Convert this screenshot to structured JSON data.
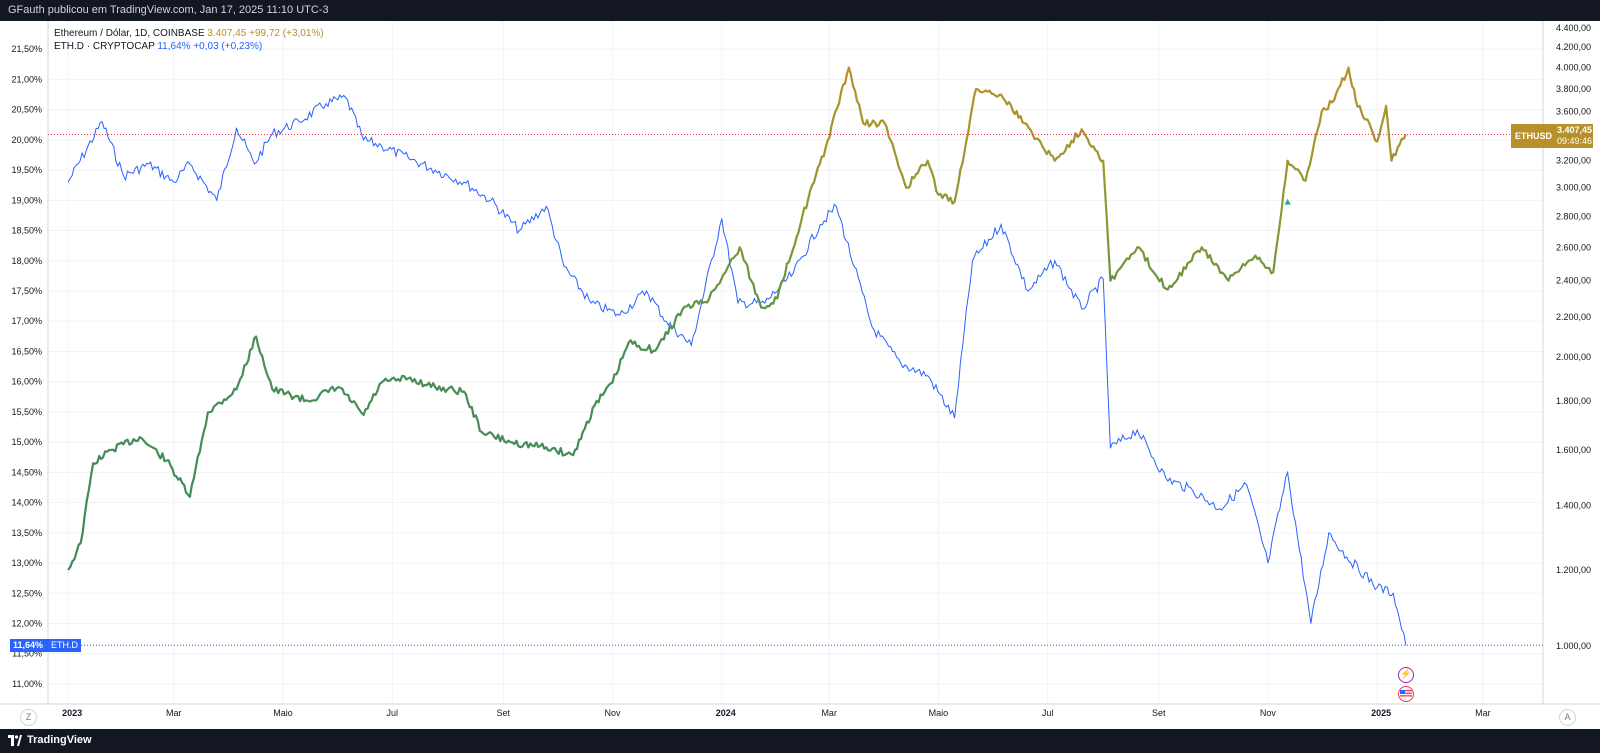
{
  "header": {
    "publisher_text": "GFauth publicou em TradingView.com, Jan 17, 2025 11:10 UTC-3"
  },
  "footer": {
    "brand": "TradingView"
  },
  "legend": {
    "series1": {
      "name": "Ethereum / Dólar, 1D, COINBASE",
      "value": "3.407,45",
      "change": "+99,72 (+3,01%)"
    },
    "series2": {
      "name": "ETH.D · CRYPTOCAP",
      "value": "11,64%",
      "change": "+0,03 (+0,23%)"
    }
  },
  "price_label": {
    "symbol": "ETHUSD",
    "price": "3.407,45",
    "countdown": "09:49:46"
  },
  "dominance_label": {
    "value": "11,64%",
    "symbol": "ETH.D"
  },
  "buttons": {
    "z": "Z",
    "a": "A"
  },
  "colors": {
    "ethd_line": "#2962ff",
    "eth_up": "#b8902a",
    "eth_low": "#3a8a5a",
    "price_line": "#f23645",
    "grid": "#f0f3fa"
  },
  "chart_data": {
    "type": "line",
    "x_axis": {
      "labels": [
        "2023",
        "Mar",
        "Maio",
        "Jul",
        "Set",
        "Nov",
        "2024",
        "Mar",
        "Maio",
        "Jul",
        "Set",
        "Nov",
        "2025",
        "Mar"
      ],
      "range": [
        "2023-01",
        "2025-03"
      ]
    },
    "left_axis": {
      "ticks": [
        "21,50%",
        "21,00%",
        "20,50%",
        "20,00%",
        "19,50%",
        "19,00%",
        "18,50%",
        "18,00%",
        "17,50%",
        "17,00%",
        "16,50%",
        "16,00%",
        "15,50%",
        "15,00%",
        "14,50%",
        "14,00%",
        "13,50%",
        "13,00%",
        "12,50%",
        "12,00%",
        "11,50%",
        "11,00%"
      ],
      "range": [
        10.9,
        21.9
      ]
    },
    "right_axis": {
      "ticks": [
        "4.400,00",
        "4.200,00",
        "4.000,00",
        "3.800,00",
        "3.600,00",
        "3.400,00",
        "3.200,00",
        "3.000,00",
        "2.800,00",
        "2.600,00",
        "2.400,00",
        "2.200,00",
        "2.000,00",
        "1.800,00",
        "1.600,00",
        "1.400,00",
        "1.200,00",
        "1.000,00"
      ],
      "range": [
        900,
        4430
      ],
      "scale": "log"
    },
    "series": [
      {
        "name": "ETH.D · CRYPTOCAP",
        "axis": "left",
        "unit": "%",
        "dates": [
          "2023-01-01",
          "2023-01-20",
          "2023-02-01",
          "2023-02-15",
          "2023-03-01",
          "2023-03-10",
          "2023-03-25",
          "2023-04-05",
          "2023-04-15",
          "2023-04-25",
          "2023-05-10",
          "2023-05-25",
          "2023-06-05",
          "2023-06-15",
          "2023-06-25",
          "2023-07-10",
          "2023-07-25",
          "2023-08-10",
          "2023-08-25",
          "2023-09-10",
          "2023-09-25",
          "2023-10-05",
          "2023-10-20",
          "2023-11-05",
          "2023-11-20",
          "2023-12-01",
          "2023-12-15",
          "2024-01-01",
          "2024-01-10",
          "2024-01-25",
          "2024-02-10",
          "2024-02-25",
          "2024-03-05",
          "2024-03-15",
          "2024-03-25",
          "2024-04-10",
          "2024-04-25",
          "2024-05-10",
          "2024-05-20",
          "2024-06-05",
          "2024-06-20",
          "2024-07-05",
          "2024-07-20",
          "2024-08-01",
          "2024-08-05",
          "2024-08-20",
          "2024-09-05",
          "2024-09-20",
          "2024-10-05",
          "2024-10-20",
          "2024-11-01",
          "2024-11-12",
          "2024-11-25",
          "2024-12-05",
          "2024-12-15",
          "2025-01-01",
          "2025-01-10",
          "2025-01-17"
        ],
        "values": [
          19.3,
          20.3,
          19.4,
          19.6,
          19.3,
          19.6,
          19.0,
          20.2,
          19.6,
          20.1,
          20.3,
          20.6,
          20.7,
          20.0,
          19.9,
          19.7,
          19.5,
          19.3,
          19.0,
          18.5,
          18.9,
          17.9,
          17.3,
          17.1,
          17.5,
          17.0,
          16.6,
          18.7,
          17.3,
          17.3,
          17.8,
          18.6,
          18.9,
          17.9,
          16.9,
          16.3,
          16.1,
          15.4,
          18.0,
          18.6,
          17.5,
          18.0,
          17.2,
          17.7,
          14.9,
          15.2,
          14.4,
          14.2,
          13.9,
          14.3,
          13.0,
          14.5,
          12.0,
          13.5,
          13.1,
          12.6,
          12.5,
          11.64
        ]
      },
      {
        "name": "Ethereum / Dólar, 1D, COINBASE",
        "axis": "right",
        "unit": "USD",
        "dates": [
          "2023-01-01",
          "2023-01-08",
          "2023-01-15",
          "2023-01-25",
          "2023-02-10",
          "2023-02-25",
          "2023-03-10",
          "2023-03-20",
          "2023-04-05",
          "2023-04-16",
          "2023-04-25",
          "2023-05-15",
          "2023-06-01",
          "2023-06-15",
          "2023-06-25",
          "2023-07-10",
          "2023-07-25",
          "2023-08-10",
          "2023-08-20",
          "2023-09-05",
          "2023-09-25",
          "2023-10-10",
          "2023-10-22",
          "2023-11-01",
          "2023-11-10",
          "2023-11-25",
          "2023-12-10",
          "2023-12-25",
          "2024-01-11",
          "2024-01-23",
          "2024-02-01",
          "2024-02-15",
          "2024-02-28",
          "2024-03-12",
          "2024-03-20",
          "2024-04-01",
          "2024-04-13",
          "2024-04-25",
          "2024-05-01",
          "2024-05-10",
          "2024-05-22",
          "2024-06-05",
          "2024-06-18",
          "2024-07-05",
          "2024-07-20",
          "2024-08-01",
          "2024-08-05",
          "2024-08-20",
          "2024-09-06",
          "2024-09-25",
          "2024-10-10",
          "2024-10-25",
          "2024-11-04",
          "2024-11-12",
          "2024-11-22",
          "2024-12-01",
          "2024-12-08",
          "2024-12-16",
          "2024-12-20",
          "2025-01-01",
          "2025-01-06",
          "2025-01-09",
          "2025-01-17"
        ],
        "values": [
          1200,
          1280,
          1550,
          1600,
          1650,
          1560,
          1430,
          1750,
          1850,
          2100,
          1850,
          1800,
          1860,
          1740,
          1880,
          1900,
          1860,
          1840,
          1670,
          1630,
          1610,
          1580,
          1780,
          1880,
          2070,
          2030,
          2240,
          2300,
          2600,
          2250,
          2300,
          2800,
          3300,
          4000,
          3500,
          3500,
          3000,
          3200,
          2950,
          2900,
          3800,
          3750,
          3500,
          3200,
          3450,
          3200,
          2400,
          2600,
          2350,
          2600,
          2400,
          2550,
          2450,
          3200,
          3050,
          3600,
          3700,
          4000,
          3700,
          3350,
          3650,
          3200,
          3407.45
        ]
      }
    ],
    "current_price": 3407.45,
    "current_dominance": 11.64,
    "grid": true
  }
}
